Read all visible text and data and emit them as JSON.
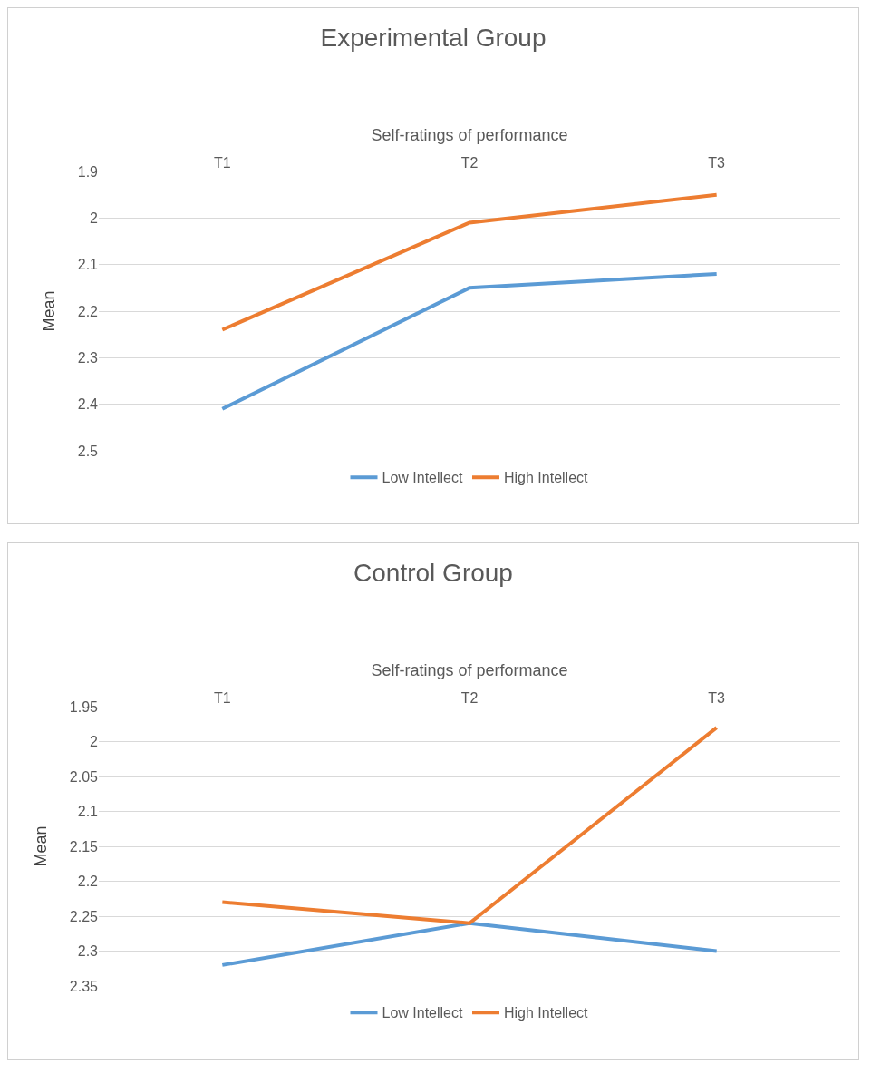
{
  "chart_data": [
    {
      "type": "line",
      "title": "Experimental Group",
      "xlabel": "Self-ratings of performance",
      "ylabel": "Mean",
      "categories": [
        "T1",
        "T2",
        "T3"
      ],
      "series": [
        {
          "name": "Low Intellect",
          "color": "#5b9bd5",
          "values": [
            2.41,
            2.15,
            2.12
          ]
        },
        {
          "name": "High Intellect",
          "color": "#ed7d31",
          "values": [
            2.24,
            2.01,
            1.95
          ]
        }
      ],
      "ylim": [
        2.5,
        1.9
      ],
      "yticks": [
        1.9,
        2,
        2.1,
        2.2,
        2.3,
        2.4,
        2.5
      ],
      "grid": "y",
      "legend": "bottom",
      "marker": "none",
      "line_style": "solid"
    },
    {
      "type": "line",
      "title": "Control Group",
      "xlabel": "Self-ratings of performance",
      "ylabel": "Mean",
      "categories": [
        "T1",
        "T2",
        "T3"
      ],
      "series": [
        {
          "name": "Low Intellect",
          "color": "#5b9bd5",
          "values": [
            2.32,
            2.26,
            2.3
          ]
        },
        {
          "name": "High Intellect",
          "color": "#ed7d31",
          "values": [
            2.23,
            2.26,
            1.98
          ]
        }
      ],
      "ylim": [
        2.35,
        1.95
      ],
      "yticks": [
        1.95,
        2,
        2.05,
        2.1,
        2.15,
        2.2,
        2.25,
        2.3,
        2.35
      ],
      "grid": "y",
      "legend": "bottom",
      "marker": "none",
      "line_style": "solid"
    }
  ]
}
